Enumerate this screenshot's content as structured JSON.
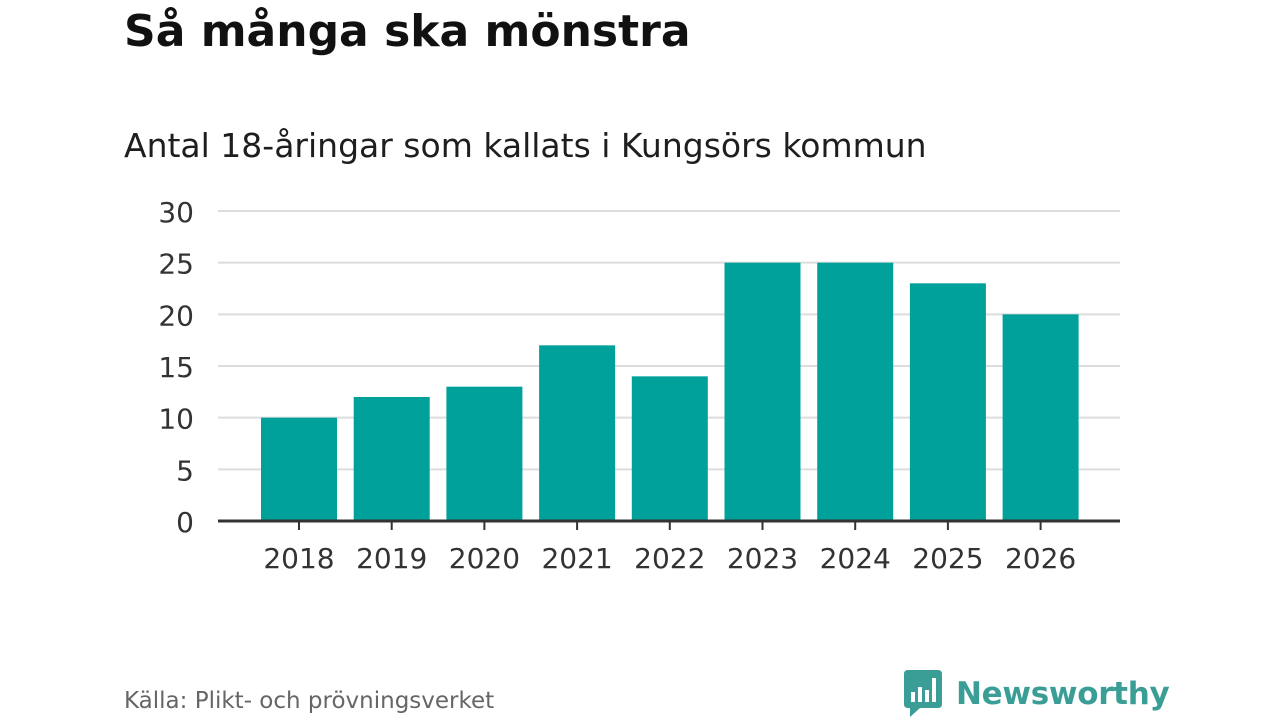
{
  "title": "Så många ska mönstra",
  "subtitle": "Antal 18-åringar som kallats i Kungsörs kommun",
  "source": "Källa: Plikt- och prövningsverket",
  "brand": {
    "name": "Newsworthy",
    "icon": "newsworthy-logo-icon",
    "color": "#3a9e96"
  },
  "colors": {
    "bar": "#00a19a",
    "grid": "#dddddd",
    "axis": "#333333",
    "text": "#333333"
  },
  "chart_data": {
    "type": "bar",
    "title": "Antal 18-åringar som kallats i Kungsörs kommun",
    "categories": [
      "2018",
      "2019",
      "2020",
      "2021",
      "2022",
      "2023",
      "2024",
      "2025",
      "2026"
    ],
    "values": [
      10,
      12,
      13,
      17,
      14,
      25,
      25,
      23,
      20
    ],
    "xlabel": "",
    "ylabel": "",
    "ylim": [
      0,
      30
    ],
    "yticks": [
      0,
      5,
      10,
      15,
      20,
      25,
      30
    ],
    "grid": true
  }
}
